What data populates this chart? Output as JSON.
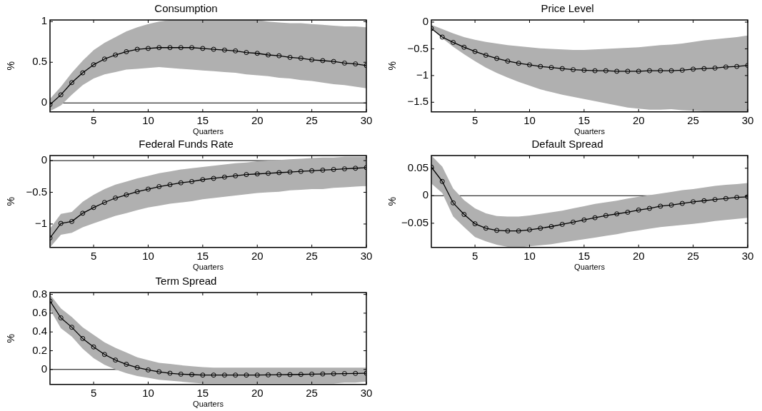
{
  "chart_data": [
    {
      "type": "line",
      "title": "Consumption",
      "xlabel": "Quarters",
      "ylabel": "%",
      "xlim": [
        1,
        30
      ],
      "xticks": [
        5,
        10,
        15,
        20,
        25,
        30
      ],
      "ylim": [
        -0.11,
        1.02
      ],
      "yticks": [
        0,
        0.5,
        1
      ],
      "grid": false,
      "legend": false,
      "marker": "circle",
      "line_style": "solid",
      "x": [
        1,
        2,
        3,
        4,
        5,
        6,
        7,
        8,
        9,
        10,
        11,
        12,
        13,
        14,
        15,
        16,
        17,
        18,
        19,
        20,
        21,
        22,
        23,
        24,
        25,
        26,
        27,
        28,
        29,
        30
      ],
      "ref_lines": [
        {
          "axis": "y",
          "value": 0,
          "color": "#000000"
        }
      ],
      "series": [
        {
          "color": "#000000",
          "values": [
            -0.02,
            0.1,
            0.25,
            0.37,
            0.47,
            0.54,
            0.59,
            0.63,
            0.66,
            0.67,
            0.68,
            0.68,
            0.68,
            0.68,
            0.67,
            0.66,
            0.65,
            0.64,
            0.62,
            0.61,
            0.59,
            0.58,
            0.56,
            0.55,
            0.53,
            0.52,
            0.51,
            0.49,
            0.48,
            0.46
          ],
          "upper": [
            0.05,
            0.2,
            0.37,
            0.52,
            0.65,
            0.74,
            0.81,
            0.88,
            0.93,
            0.97,
            1.0,
            1.02,
            1.02,
            1.02,
            1.02,
            1.02,
            1.02,
            1.02,
            1.02,
            1.02,
            1.0,
            0.99,
            0.98,
            0.98,
            0.97,
            0.96,
            0.95,
            0.94,
            0.94,
            0.93
          ],
          "lower": [
            -0.1,
            -0.03,
            0.1,
            0.22,
            0.3,
            0.35,
            0.38,
            0.41,
            0.42,
            0.43,
            0.44,
            0.43,
            0.42,
            0.41,
            0.4,
            0.39,
            0.38,
            0.37,
            0.35,
            0.34,
            0.33,
            0.31,
            0.3,
            0.28,
            0.27,
            0.25,
            0.23,
            0.22,
            0.2,
            0.18
          ]
        }
      ]
    },
    {
      "type": "line",
      "title": "Price Level",
      "xlabel": "Quarters",
      "ylabel": "%",
      "xlim": [
        1,
        30
      ],
      "xticks": [
        5,
        10,
        15,
        20,
        25,
        30
      ],
      "ylim": [
        -1.68,
        0.04
      ],
      "yticks": [
        -1.5,
        -1,
        -0.5,
        0
      ],
      "grid": false,
      "legend": false,
      "marker": "circle",
      "line_style": "solid",
      "x": [
        1,
        2,
        3,
        4,
        5,
        6,
        7,
        8,
        9,
        10,
        11,
        12,
        13,
        14,
        15,
        16,
        17,
        18,
        19,
        20,
        21,
        22,
        23,
        24,
        25,
        26,
        27,
        28,
        29,
        30
      ],
      "series": [
        {
          "color": "#000000",
          "values": [
            -0.12,
            -0.28,
            -0.38,
            -0.47,
            -0.55,
            -0.62,
            -0.68,
            -0.73,
            -0.77,
            -0.8,
            -0.83,
            -0.85,
            -0.87,
            -0.89,
            -0.9,
            -0.91,
            -0.91,
            -0.92,
            -0.92,
            -0.92,
            -0.91,
            -0.91,
            -0.91,
            -0.9,
            -0.88,
            -0.87,
            -0.86,
            -0.84,
            -0.83,
            -0.81
          ],
          "upper": [
            -0.05,
            -0.13,
            -0.21,
            -0.28,
            -0.33,
            -0.37,
            -0.4,
            -0.43,
            -0.45,
            -0.47,
            -0.49,
            -0.5,
            -0.51,
            -0.52,
            -0.52,
            -0.51,
            -0.5,
            -0.49,
            -0.48,
            -0.47,
            -0.45,
            -0.43,
            -0.42,
            -0.4,
            -0.37,
            -0.34,
            -0.32,
            -0.3,
            -0.28,
            -0.25
          ],
          "lower": [
            -0.12,
            -0.3,
            -0.46,
            -0.6,
            -0.73,
            -0.85,
            -0.95,
            -1.04,
            -1.12,
            -1.19,
            -1.26,
            -1.31,
            -1.36,
            -1.4,
            -1.44,
            -1.48,
            -1.52,
            -1.56,
            -1.6,
            -1.62,
            -1.64,
            -1.64,
            -1.63,
            -1.65,
            -1.66,
            -1.67,
            -1.68,
            -1.68,
            -1.68,
            -1.68
          ]
        }
      ]
    },
    {
      "type": "line",
      "title": "Federal Funds Rate",
      "xlabel": "Quarters",
      "ylabel": "%",
      "xlim": [
        1,
        30
      ],
      "xticks": [
        5,
        10,
        15,
        20,
        25,
        30
      ],
      "ylim": [
        -1.37,
        0.08
      ],
      "yticks": [
        -1,
        -0.5,
        0
      ],
      "grid": false,
      "legend": false,
      "marker": "circle",
      "line_style": "solid",
      "x": [
        1,
        2,
        3,
        4,
        5,
        6,
        7,
        8,
        9,
        10,
        11,
        12,
        13,
        14,
        15,
        16,
        17,
        18,
        19,
        20,
        21,
        22,
        23,
        24,
        25,
        26,
        27,
        28,
        29,
        30
      ],
      "ref_lines": [
        {
          "axis": "y",
          "value": 0,
          "color": "#000000"
        }
      ],
      "series": [
        {
          "color": "#000000",
          "values": [
            -1.22,
            -0.99,
            -0.96,
            -0.83,
            -0.74,
            -0.66,
            -0.59,
            -0.54,
            -0.49,
            -0.45,
            -0.41,
            -0.38,
            -0.35,
            -0.33,
            -0.3,
            -0.28,
            -0.26,
            -0.24,
            -0.22,
            -0.21,
            -0.2,
            -0.19,
            -0.18,
            -0.17,
            -0.16,
            -0.15,
            -0.14,
            -0.13,
            -0.12,
            -0.11
          ],
          "upper": [
            -1.07,
            -0.84,
            -0.81,
            -0.65,
            -0.54,
            -0.45,
            -0.38,
            -0.33,
            -0.28,
            -0.24,
            -0.2,
            -0.17,
            -0.14,
            -0.12,
            -0.1,
            -0.08,
            -0.06,
            -0.04,
            -0.03,
            -0.01,
            0.0,
            0.01,
            0.02,
            0.03,
            0.04,
            0.05,
            0.05,
            0.06,
            0.06,
            0.06
          ],
          "lower": [
            -1.37,
            -1.17,
            -1.14,
            -1.05,
            -0.99,
            -0.93,
            -0.87,
            -0.83,
            -0.78,
            -0.74,
            -0.71,
            -0.68,
            -0.66,
            -0.64,
            -0.61,
            -0.59,
            -0.57,
            -0.55,
            -0.53,
            -0.51,
            -0.5,
            -0.49,
            -0.47,
            -0.46,
            -0.45,
            -0.45,
            -0.43,
            -0.42,
            -0.41,
            -0.4
          ]
        }
      ]
    },
    {
      "type": "line",
      "title": "Default Spread",
      "xlabel": "Quarters",
      "ylabel": "%",
      "xlim": [
        1,
        30
      ],
      "xticks": [
        5,
        10,
        15,
        20,
        25,
        30
      ],
      "ylim": [
        -0.094,
        0.073
      ],
      "yticks": [
        -0.05,
        0,
        0.05
      ],
      "grid": false,
      "legend": false,
      "marker": "circle",
      "line_style": "solid",
      "x": [
        1,
        2,
        3,
        4,
        5,
        6,
        7,
        8,
        9,
        10,
        11,
        12,
        13,
        14,
        15,
        16,
        17,
        18,
        19,
        20,
        21,
        22,
        23,
        24,
        25,
        26,
        27,
        28,
        29,
        30
      ],
      "ref_lines": [
        {
          "axis": "y",
          "value": 0,
          "color": "#000000"
        }
      ],
      "series": [
        {
          "color": "#000000",
          "values": [
            0.052,
            0.026,
            -0.013,
            -0.034,
            -0.051,
            -0.059,
            -0.063,
            -0.064,
            -0.064,
            -0.062,
            -0.059,
            -0.056,
            -0.052,
            -0.048,
            -0.044,
            -0.04,
            -0.036,
            -0.033,
            -0.03,
            -0.026,
            -0.023,
            -0.019,
            -0.017,
            -0.014,
            -0.011,
            -0.009,
            -0.007,
            -0.005,
            -0.003,
            -0.002
          ],
          "upper": [
            0.073,
            0.053,
            0.013,
            -0.008,
            -0.023,
            -0.032,
            -0.037,
            -0.038,
            -0.038,
            -0.036,
            -0.033,
            -0.03,
            -0.027,
            -0.023,
            -0.019,
            -0.015,
            -0.012,
            -0.009,
            -0.005,
            -0.002,
            0.001,
            0.004,
            0.007,
            0.01,
            0.012,
            0.015,
            0.018,
            0.02,
            0.021,
            0.023
          ],
          "lower": [
            0.022,
            0.005,
            -0.038,
            -0.057,
            -0.075,
            -0.083,
            -0.089,
            -0.093,
            -0.094,
            -0.092,
            -0.09,
            -0.088,
            -0.085,
            -0.082,
            -0.079,
            -0.076,
            -0.073,
            -0.07,
            -0.066,
            -0.063,
            -0.06,
            -0.057,
            -0.055,
            -0.053,
            -0.051,
            -0.049,
            -0.046,
            -0.044,
            -0.042,
            -0.04
          ]
        }
      ]
    },
    {
      "type": "line",
      "title": "Term Spread",
      "xlabel": "Quarters",
      "ylabel": "%",
      "xlim": [
        1,
        30
      ],
      "xticks": [
        5,
        10,
        15,
        20,
        25,
        30
      ],
      "ylim": [
        -0.16,
        0.82
      ],
      "yticks": [
        0,
        0.2,
        0.4,
        0.6,
        0.8
      ],
      "grid": false,
      "legend": false,
      "marker": "circle",
      "line_style": "solid",
      "x": [
        1,
        2,
        3,
        4,
        5,
        6,
        7,
        8,
        9,
        10,
        11,
        12,
        13,
        14,
        15,
        16,
        17,
        18,
        19,
        20,
        21,
        22,
        23,
        24,
        25,
        26,
        27,
        28,
        29,
        30
      ],
      "ref_lines": [
        {
          "axis": "y",
          "value": 0,
          "color": "#000000"
        }
      ],
      "series": [
        {
          "color": "#000000",
          "values": [
            0.73,
            0.55,
            0.45,
            0.33,
            0.24,
            0.16,
            0.1,
            0.055,
            0.02,
            -0.005,
            -0.025,
            -0.04,
            -0.05,
            -0.055,
            -0.06,
            -0.06,
            -0.06,
            -0.06,
            -0.06,
            -0.06,
            -0.058,
            -0.056,
            -0.055,
            -0.053,
            -0.05,
            -0.048,
            -0.046,
            -0.044,
            -0.042,
            -0.04
          ],
          "upper": [
            0.8,
            0.65,
            0.56,
            0.45,
            0.37,
            0.29,
            0.23,
            0.18,
            0.13,
            0.1,
            0.07,
            0.06,
            0.045,
            0.035,
            0.025,
            0.02,
            0.02,
            0.02,
            0.02,
            0.02,
            0.02,
            0.02,
            0.02,
            0.02,
            0.02,
            0.02,
            0.02,
            0.02,
            0.02,
            0.02
          ],
          "lower": [
            0.64,
            0.44,
            0.35,
            0.22,
            0.12,
            0.05,
            0.0,
            -0.04,
            -0.07,
            -0.09,
            -0.11,
            -0.12,
            -0.13,
            -0.14,
            -0.15,
            -0.15,
            -0.15,
            -0.15,
            -0.15,
            -0.15,
            -0.15,
            -0.15,
            -0.15,
            -0.15,
            -0.15,
            -0.15,
            -0.15,
            -0.14,
            -0.14,
            -0.13
          ]
        }
      ]
    }
  ]
}
